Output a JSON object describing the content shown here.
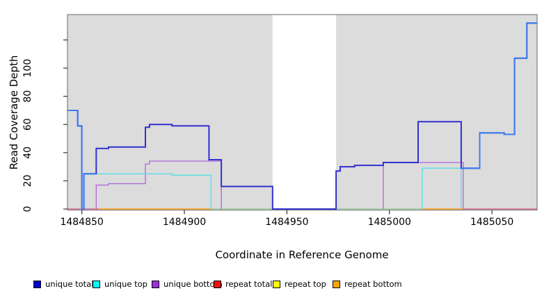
{
  "chart_data": {
    "type": "line",
    "step": true,
    "title": "",
    "xlabel": "Coordinate in Reference Genome",
    "ylabel": "Read Coverage Depth",
    "xlim": [
      1484843,
      1485072
    ],
    "ylim": [
      0,
      138
    ],
    "xticks": [
      1484850,
      1484900,
      1484950,
      1485000,
      1485050
    ],
    "yticks": [
      0,
      20,
      40,
      60,
      80,
      100,
      120
    ],
    "ytick_labels": [
      "0",
      "20",
      "40",
      "60",
      "80",
      "100",
      ""
    ],
    "grid": false,
    "panel_bg": "#DCDCDC",
    "border_color": "#878787",
    "gap_region": {
      "x_start": 1484943,
      "x_end": 1484974,
      "fill": "#FFFFFF"
    },
    "series": [
      {
        "name": "repeat total",
        "color": "#D0507E",
        "width": 1.2,
        "segments": [
          [
            [
              1484843,
              0
            ],
            [
              1485072,
              0
            ]
          ]
        ]
      },
      {
        "name": "repeat top over unique top at zero (pale green overlap)",
        "color": "#99D6A2",
        "width": 1.5,
        "segments": [
          [
            [
              1484913,
              0
            ],
            [
              1485016,
              0
            ]
          ]
        ]
      },
      {
        "name": "repeat bottom",
        "color": "#FFA216",
        "width": 1.6,
        "segments": [
          [
            [
              1484858,
              0
            ],
            [
              1484913,
              0
            ]
          ],
          [
            [
              1485016,
              0
            ],
            [
              1485036,
              0
            ]
          ]
        ]
      },
      {
        "name": "unique bottom",
        "color": "#AC62DC",
        "width": 1.3,
        "segments": [
          [
            [
              1484857,
              0
            ],
            [
              1484857,
              17
            ],
            [
              1484863,
              18
            ],
            [
              1484881,
              32
            ],
            [
              1484883,
              34
            ],
            [
              1484918,
              0
            ]
          ],
          [
            [
              1484997,
              0
            ],
            [
              1484997,
              33
            ],
            [
              1485036,
              0
            ]
          ]
        ]
      },
      {
        "name": "unique top",
        "color": "#55DFE4",
        "width": 1.3,
        "segments": [
          [
            [
              1484851,
              25
            ],
            [
              1484894,
              24
            ],
            [
              1484913,
              0
            ]
          ],
          [
            [
              1485016,
              0
            ],
            [
              1485016,
              29
            ],
            [
              1485035,
              0
            ]
          ]
        ]
      },
      {
        "name": "unique total",
        "color": "#3030D0",
        "width": 2,
        "segments": [
          [
            [
              1484843,
              70
            ],
            [
              1484848,
              59
            ],
            [
              1484850,
              0
            ],
            [
              1484851,
              25
            ],
            [
              1484857,
              43
            ],
            [
              1484863,
              44
            ],
            [
              1484881,
              58
            ],
            [
              1484883,
              60
            ],
            [
              1484894,
              59
            ],
            [
              1484912,
              35
            ],
            [
              1484918,
              16
            ],
            [
              1484943,
              0
            ],
            [
              1484974,
              27
            ],
            [
              1484976,
              30
            ],
            [
              1484983,
              31
            ],
            [
              1484997,
              33
            ],
            [
              1485014,
              62
            ],
            [
              1485035,
              29
            ],
            [
              1485044,
              54
            ],
            [
              1485056,
              53
            ],
            [
              1485061,
              107
            ],
            [
              1485067,
              132
            ],
            [
              1485072,
              132
            ]
          ]
        ]
      },
      {
        "name": "total (light blue, no legend entry)",
        "color": "#3D7DF0",
        "width": 2,
        "segments": [
          [
            [
              1484843,
              70
            ],
            [
              1484848,
              59
            ],
            [
              1484850,
              0
            ],
            [
              1484851,
              25
            ],
            [
              1484857,
              25
            ]
          ],
          [
            [
              1485035,
              29
            ],
            [
              1485044,
              54
            ],
            [
              1485056,
              53
            ],
            [
              1485061,
              107
            ],
            [
              1485067,
              132
            ],
            [
              1485072,
              132
            ]
          ]
        ]
      }
    ]
  },
  "legend": {
    "items": [
      {
        "label": "unique total",
        "color": "#0000CC"
      },
      {
        "label": "unique top",
        "color": "#00FFFF"
      },
      {
        "label": "unique bottom",
        "color": "#9B30D9"
      },
      {
        "label": "repeat total",
        "color": "#EE1111"
      },
      {
        "label": "repeat top",
        "color": "#FFFF00"
      },
      {
        "label": "repeat bottom",
        "color": "#FFA500"
      }
    ]
  }
}
